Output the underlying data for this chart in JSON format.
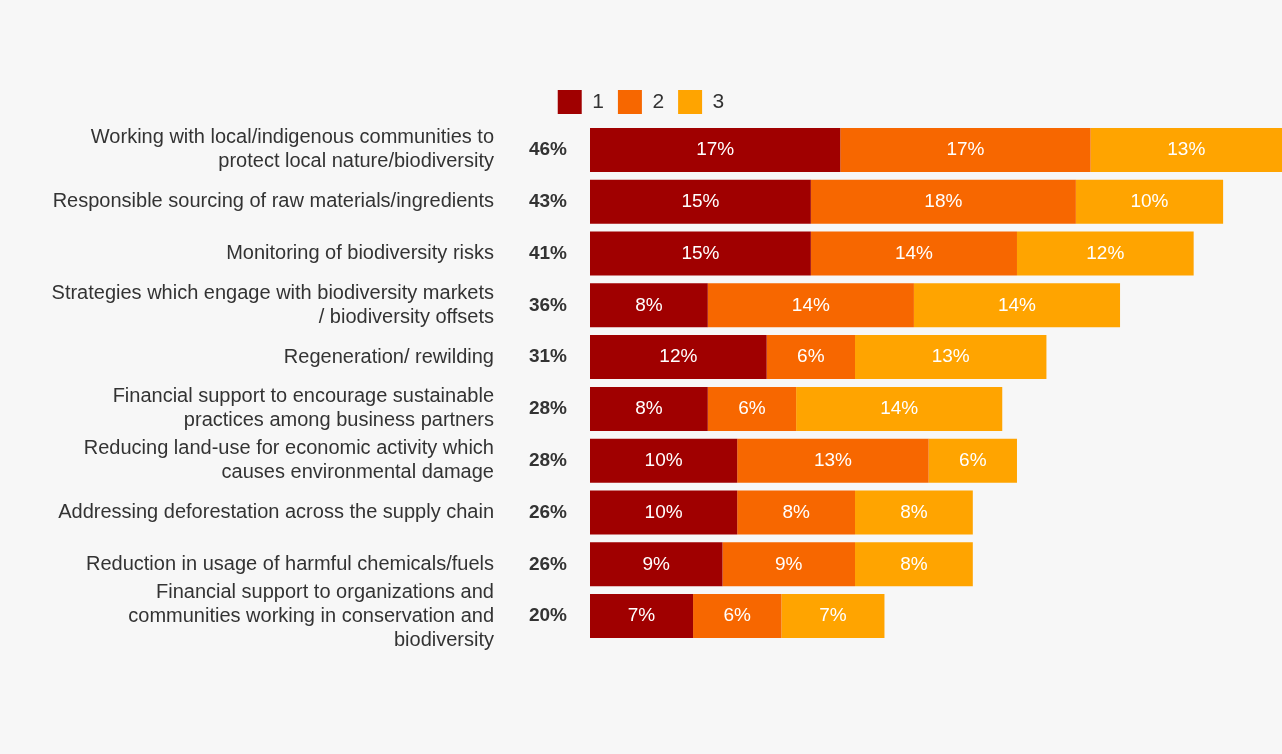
{
  "chart_data": {
    "type": "bar",
    "orientation": "horizontal",
    "stacked": true,
    "legend": "top",
    "categories": [
      "Working with local/indigenous communities to protect local nature/biodiversity",
      "Responsible sourcing of raw materials/ingredients",
      "Monitoring of biodiversity risks",
      "Strategies which engage with biodiversity markets / biodiversity offsets",
      "Regeneration/ rewilding",
      "Financial support to encourage sustainable practices among business partners",
      "Reducing land-use for economic activity which causes environmental damage",
      "Addressing deforestation across the supply chain",
      "Reduction in usage of harmful chemicals/fuels",
      "Financial support to organizations and communities working in conservation and biodiversity"
    ],
    "series": [
      {
        "name": "1",
        "color": "#a00000",
        "values": [
          17,
          15,
          15,
          8,
          12,
          8,
          10,
          10,
          9,
          7
        ],
        "value_labels": [
          "17%",
          "15%",
          "15%",
          "8%",
          "12%",
          "8%",
          "10%",
          "10%",
          "9%",
          "7%"
        ]
      },
      {
        "name": "2",
        "color": "#f76700",
        "values": [
          17,
          18,
          14,
          14,
          6,
          6,
          13,
          8,
          9,
          6
        ],
        "value_labels": [
          "17%",
          "18%",
          "14%",
          "14%",
          "6%",
          "6%",
          "13%",
          "8%",
          "9%",
          "6%"
        ]
      },
      {
        "name": "3",
        "color": "#ffa400",
        "values": [
          13,
          10,
          12,
          14,
          13,
          14,
          6,
          8,
          8,
          7
        ],
        "value_labels": [
          "13%",
          "10%",
          "12%",
          "14%",
          "13%",
          "14%",
          "6%",
          "8%",
          "8%",
          "7%"
        ]
      }
    ],
    "totals": [
      "46%",
      "43%",
      "41%",
      "36%",
      "31%",
      "28%",
      "28%",
      "26%",
      "26%",
      "20%"
    ]
  }
}
